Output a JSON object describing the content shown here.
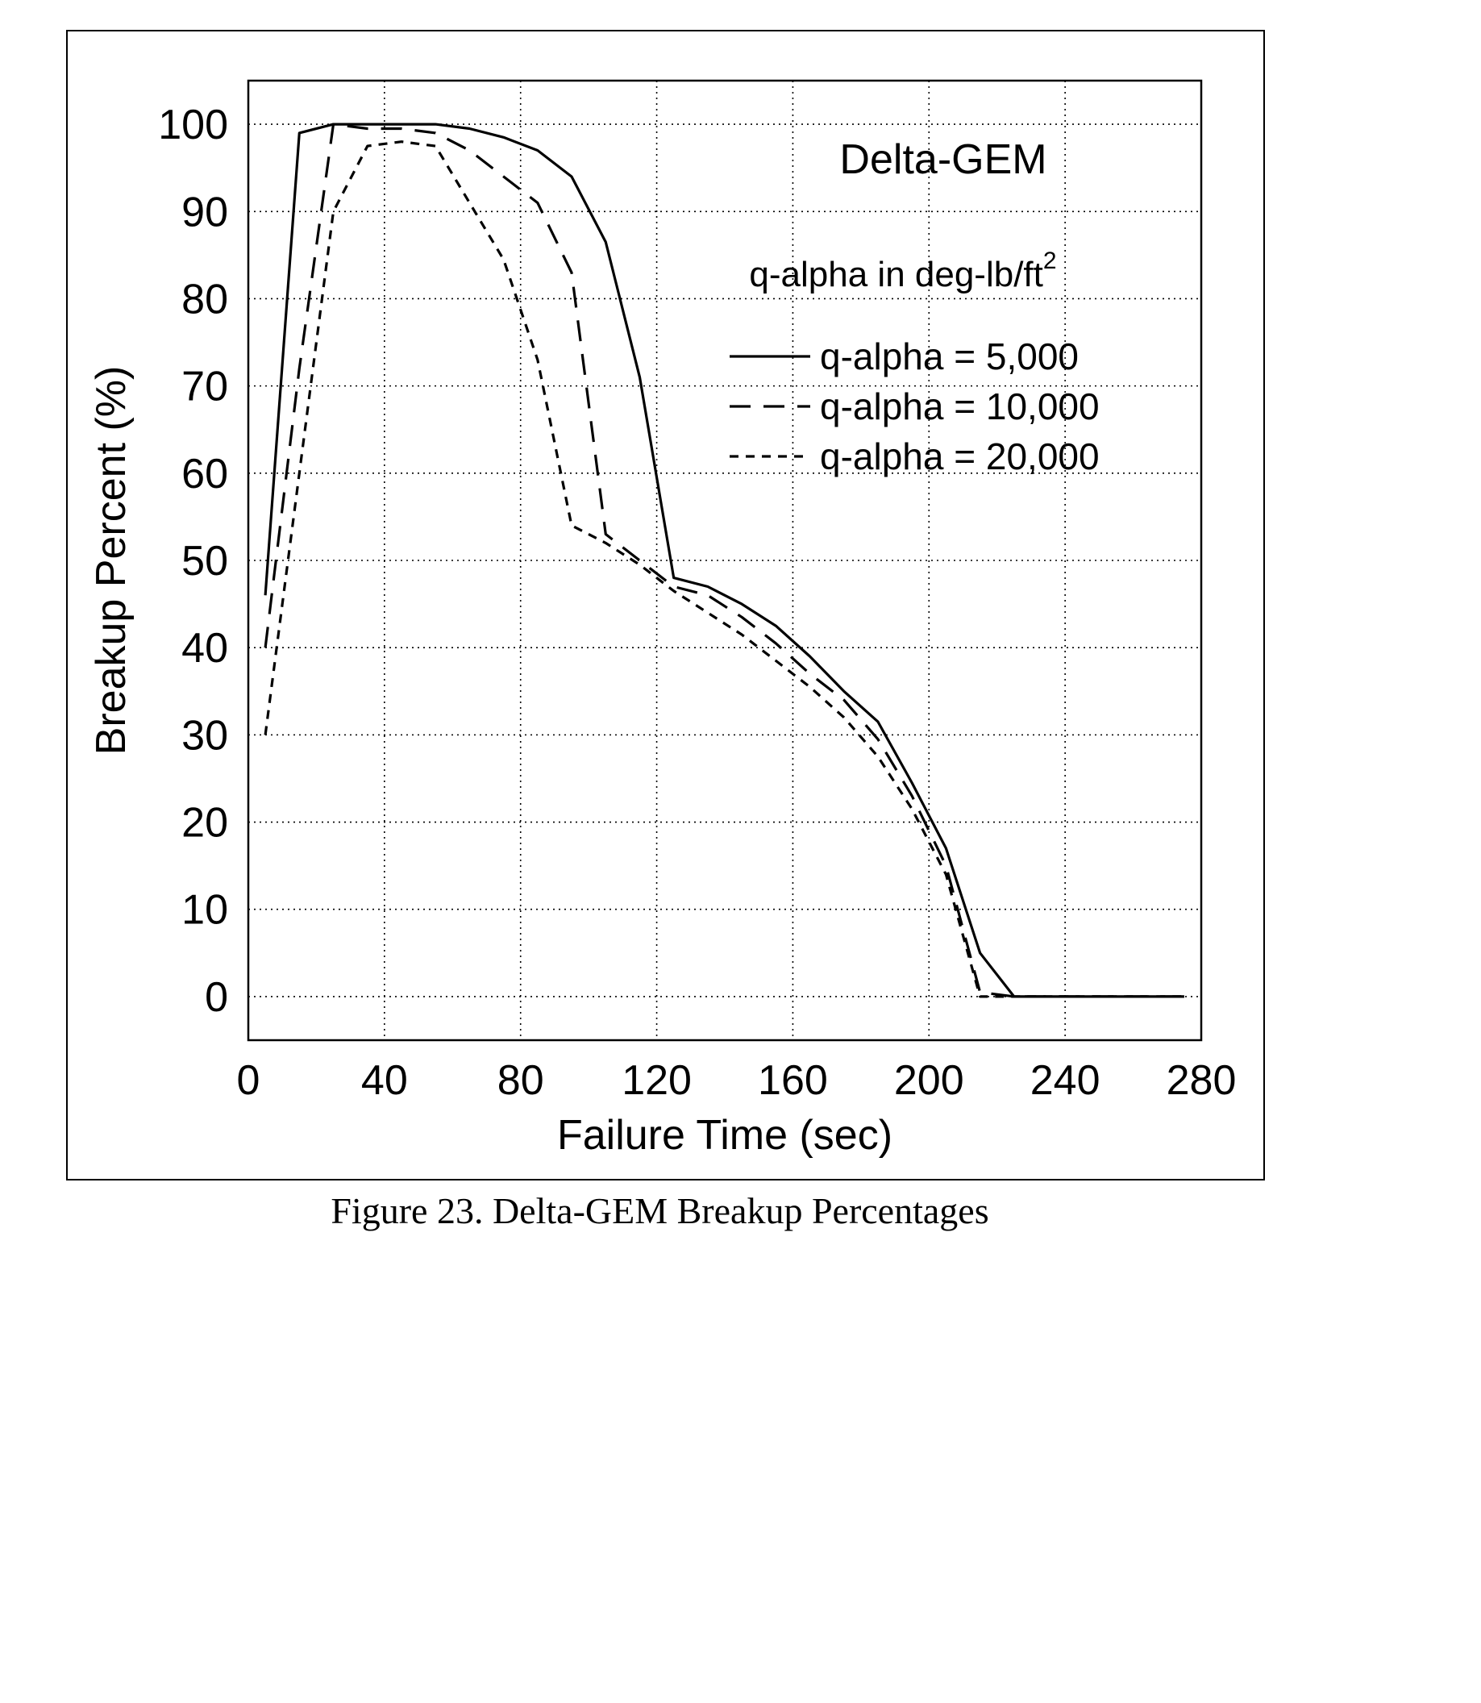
{
  "chart_data": {
    "type": "line",
    "annotation_title": "Delta-GEM",
    "annotation_subtitle": "q-alpha in deg-lb/ft",
    "annotation_subtitle_sup": "2",
    "xlabel": "Failure Time (sec)",
    "ylabel": "Breakup Percent (%)",
    "xlim": [
      0,
      280
    ],
    "ylim": [
      -5,
      105
    ],
    "xticks": [
      0,
      40,
      80,
      120,
      160,
      200,
      240,
      280
    ],
    "yticks": [
      0,
      10,
      20,
      30,
      40,
      50,
      60,
      70,
      80,
      90,
      100
    ],
    "grid": true,
    "legend_position": "upper-right",
    "series": [
      {
        "name": "q-alpha =   5,000",
        "style": "solid",
        "x": [
          5,
          15,
          25,
          35,
          45,
          55,
          65,
          75,
          85,
          95,
          105,
          115,
          125,
          135,
          145,
          155,
          165,
          175,
          185,
          195,
          205,
          215,
          225,
          275
        ],
        "y": [
          46,
          99,
          100,
          100,
          100,
          100,
          99.5,
          98.5,
          97,
          94,
          86.5,
          71,
          48,
          47,
          45,
          42.5,
          39,
          35,
          31.5,
          24.5,
          17,
          5,
          0,
          0
        ]
      },
      {
        "name": "q-alpha = 10,000",
        "style": "dashed",
        "x": [
          5,
          15,
          25,
          35,
          45,
          55,
          65,
          75,
          85,
          95,
          105,
          115,
          125,
          135,
          145,
          155,
          165,
          175,
          185,
          195,
          205,
          215,
          225,
          275
        ],
        "y": [
          40,
          72,
          100,
          99.5,
          99.5,
          99,
          97,
          94,
          91,
          83,
          53,
          50,
          47,
          46,
          43.5,
          40.5,
          37,
          34,
          29.5,
          23,
          15,
          0.5,
          0,
          0
        ]
      },
      {
        "name": "q-alpha = 20,000",
        "style": "short-dashed",
        "x": [
          5,
          15,
          25,
          35,
          45,
          55,
          65,
          75,
          85,
          95,
          105,
          115,
          125,
          135,
          145,
          155,
          165,
          175,
          185,
          195,
          205,
          215,
          225,
          275
        ],
        "y": [
          30,
          60,
          90,
          97.5,
          98,
          97.5,
          91,
          84.5,
          73,
          54,
          52,
          49.5,
          46.5,
          44,
          41.5,
          38.5,
          35.5,
          32,
          27.5,
          21.5,
          14,
          0,
          0,
          0
        ]
      }
    ]
  },
  "caption": "Figure 23. Delta-GEM Breakup Percentages"
}
